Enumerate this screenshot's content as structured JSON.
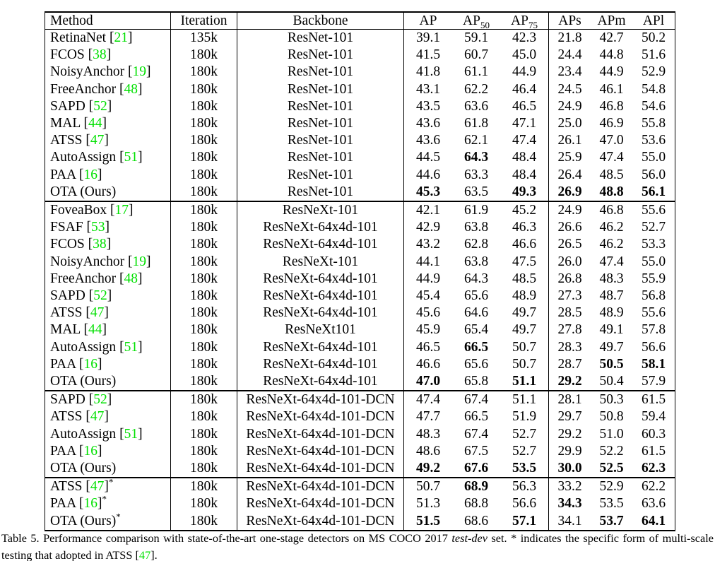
{
  "table": {
    "columns": [
      {
        "key": "method",
        "label": "Method"
      },
      {
        "key": "iteration",
        "label": "Iteration"
      },
      {
        "key": "backbone",
        "label": "Backbone"
      },
      {
        "key": "ap",
        "label": "AP"
      },
      {
        "key": "ap50",
        "label": "AP",
        "sub": "50"
      },
      {
        "key": "ap75",
        "label": "AP",
        "sub": "75"
      },
      {
        "key": "aps",
        "label": "APs"
      },
      {
        "key": "apm",
        "label": "APm"
      },
      {
        "key": "apl",
        "label": "APl"
      }
    ],
    "sections": [
      {
        "rows": [
          {
            "method": "RetinaNet",
            "cite": "21",
            "star": false,
            "iteration": "135k",
            "backbone": "ResNet-101",
            "values": [
              "39.1",
              "59.1",
              "42.3",
              "21.8",
              "42.7",
              "50.2"
            ],
            "bold": []
          },
          {
            "method": "FCOS",
            "cite": "38",
            "star": false,
            "iteration": "180k",
            "backbone": "ResNet-101",
            "values": [
              "41.5",
              "60.7",
              "45.0",
              "24.4",
              "44.8",
              "51.6"
            ],
            "bold": []
          },
          {
            "method": "NoisyAnchor",
            "cite": "19",
            "star": false,
            "iteration": "180k",
            "backbone": "ResNet-101",
            "values": [
              "41.8",
              "61.1",
              "44.9",
              "23.4",
              "44.9",
              "52.9"
            ],
            "bold": []
          },
          {
            "method": "FreeAnchor",
            "cite": "48",
            "star": false,
            "iteration": "180k",
            "backbone": "ResNet-101",
            "values": [
              "43.1",
              "62.2",
              "46.4",
              "24.5",
              "46.1",
              "54.8"
            ],
            "bold": []
          },
          {
            "method": "SAPD",
            "cite": "52",
            "star": false,
            "iteration": "180k",
            "backbone": "ResNet-101",
            "values": [
              "43.5",
              "63.6",
              "46.5",
              "24.9",
              "46.8",
              "54.6"
            ],
            "bold": []
          },
          {
            "method": "MAL",
            "cite": "44",
            "star": false,
            "iteration": "180k",
            "backbone": "ResNet-101",
            "values": [
              "43.6",
              "61.8",
              "47.1",
              "25.0",
              "46.9",
              "55.8"
            ],
            "bold": []
          },
          {
            "method": "ATSS",
            "cite": "47",
            "star": false,
            "iteration": "180k",
            "backbone": "ResNet-101",
            "values": [
              "43.6",
              "62.1",
              "47.4",
              "26.1",
              "47.0",
              "53.6"
            ],
            "bold": []
          },
          {
            "method": "AutoAssign",
            "cite": "51",
            "star": false,
            "iteration": "180k",
            "backbone": "ResNet-101",
            "values": [
              "44.5",
              "64.3",
              "48.4",
              "25.9",
              "47.4",
              "55.0"
            ],
            "bold": [
              1
            ]
          },
          {
            "method": "PAA",
            "cite": "16",
            "star": false,
            "iteration": "180k",
            "backbone": "ResNet-101",
            "values": [
              "44.6",
              "63.3",
              "48.4",
              "26.4",
              "48.5",
              "56.0"
            ],
            "bold": []
          },
          {
            "method": "OTA (Ours)",
            "cite": null,
            "star": false,
            "iteration": "180k",
            "backbone": "ResNet-101",
            "values": [
              "45.3",
              "63.5",
              "49.3",
              "26.9",
              "48.8",
              "56.1"
            ],
            "bold": [
              0,
              2,
              3,
              4,
              5
            ]
          }
        ]
      },
      {
        "rows": [
          {
            "method": "FoveaBox",
            "cite": "17",
            "star": false,
            "iteration": "180k",
            "backbone": "ResNeXt-101",
            "values": [
              "42.1",
              "61.9",
              "45.2",
              "24.9",
              "46.8",
              "55.6"
            ],
            "bold": []
          },
          {
            "method": "FSAF",
            "cite": "53",
            "star": false,
            "iteration": "180k",
            "backbone": "ResNeXt-64x4d-101",
            "values": [
              "42.9",
              "63.8",
              "46.3",
              "26.6",
              "46.2",
              "52.7"
            ],
            "bold": []
          },
          {
            "method": "FCOS",
            "cite": "38",
            "star": false,
            "iteration": "180k",
            "backbone": "ResNeXt-64x4d-101",
            "values": [
              "43.2",
              "62.8",
              "46.6",
              "26.5",
              "46.2",
              "53.3"
            ],
            "bold": []
          },
          {
            "method": "NoisyAnchor",
            "cite": "19",
            "star": false,
            "iteration": "180k",
            "backbone": "ResNeXt-101",
            "values": [
              "44.1",
              "63.8",
              "47.5",
              "26.0",
              "47.4",
              "55.0"
            ],
            "bold": []
          },
          {
            "method": "FreeAnchor",
            "cite": "48",
            "star": false,
            "iteration": "180k",
            "backbone": "ResNeXt-64x4d-101",
            "values": [
              "44.9",
              "64.3",
              "48.5",
              "26.8",
              "48.3",
              "55.9"
            ],
            "bold": []
          },
          {
            "method": "SAPD",
            "cite": "52",
            "star": false,
            "iteration": "180k",
            "backbone": "ResNeXt-64x4d-101",
            "values": [
              "45.4",
              "65.6",
              "48.9",
              "27.3",
              "48.7",
              "56.8"
            ],
            "bold": []
          },
          {
            "method": "ATSS",
            "cite": "47",
            "star": false,
            "iteration": "180k",
            "backbone": "ResNeXt-64x4d-101",
            "values": [
              "45.6",
              "64.6",
              "49.7",
              "28.5",
              "48.9",
              "55.6"
            ],
            "bold": []
          },
          {
            "method": "MAL",
            "cite": "44",
            "star": false,
            "iteration": "180k",
            "backbone": "ResNeXt101",
            "values": [
              "45.9",
              "65.4",
              "49.7",
              "27.8",
              "49.1",
              "57.8"
            ],
            "bold": []
          },
          {
            "method": "AutoAssign",
            "cite": "51",
            "star": false,
            "iteration": "180k",
            "backbone": "ResNeXt-64x4d-101",
            "values": [
              "46.5",
              "66.5",
              "50.7",
              "28.3",
              "49.7",
              "56.6"
            ],
            "bold": [
              1
            ]
          },
          {
            "method": "PAA",
            "cite": "16",
            "star": false,
            "iteration": "180k",
            "backbone": "ResNeXt-64x4d-101",
            "values": [
              "46.6",
              "65.6",
              "50.7",
              "28.7",
              "50.5",
              "58.1"
            ],
            "bold": [
              4,
              5
            ]
          },
          {
            "method": "OTA (Ours)",
            "cite": null,
            "star": false,
            "iteration": "180k",
            "backbone": "ResNeXt-64x4d-101",
            "values": [
              "47.0",
              "65.8",
              "51.1",
              "29.2",
              "50.4",
              "57.9"
            ],
            "bold": [
              0,
              2,
              3
            ]
          }
        ]
      },
      {
        "rows": [
          {
            "method": "SAPD",
            "cite": "52",
            "star": false,
            "iteration": "180k",
            "backbone": "ResNeXt-64x4d-101-DCN",
            "values": [
              "47.4",
              "67.4",
              "51.1",
              "28.1",
              "50.3",
              "61.5"
            ],
            "bold": []
          },
          {
            "method": "ATSS",
            "cite": "47",
            "star": false,
            "iteration": "180k",
            "backbone": "ResNeXt-64x4d-101-DCN",
            "values": [
              "47.7",
              "66.5",
              "51.9",
              "29.7",
              "50.8",
              "59.4"
            ],
            "bold": []
          },
          {
            "method": "AutoAssign",
            "cite": "51",
            "star": false,
            "iteration": "180k",
            "backbone": "ResNeXt-64x4d-101-DCN",
            "values": [
              "48.3",
              "67.4",
              "52.7",
              "29.2",
              "51.0",
              "60.3"
            ],
            "bold": []
          },
          {
            "method": "PAA",
            "cite": "16",
            "star": false,
            "iteration": "180k",
            "backbone": "ResNeXt-64x4d-101-DCN",
            "values": [
              "48.6",
              "67.5",
              "52.7",
              "29.9",
              "52.2",
              "61.5"
            ],
            "bold": []
          },
          {
            "method": "OTA (Ours)",
            "cite": null,
            "star": false,
            "iteration": "180k",
            "backbone": "ResNeXt-64x4d-101-DCN",
            "values": [
              "49.2",
              "67.6",
              "53.5",
              "30.0",
              "52.5",
              "62.3"
            ],
            "bold": [
              0,
              1,
              2,
              3,
              4,
              5
            ]
          }
        ]
      },
      {
        "rows": [
          {
            "method": "ATSS",
            "cite": "47",
            "star": true,
            "iteration": "180k",
            "backbone": "ResNeXt-64x4d-101-DCN",
            "values": [
              "50.7",
              "68.9",
              "56.3",
              "33.2",
              "52.9",
              "62.2"
            ],
            "bold": [
              1
            ]
          },
          {
            "method": "PAA",
            "cite": "16",
            "star": true,
            "iteration": "180k",
            "backbone": "ResNeXt-64x4d-101-DCN",
            "values": [
              "51.3",
              "68.8",
              "56.6",
              "34.3",
              "53.5",
              "63.6"
            ],
            "bold": [
              3
            ]
          },
          {
            "method": "OTA (Ours)",
            "cite": null,
            "star": true,
            "iteration": "180k",
            "backbone": "ResNeXt-64x4d-101-DCN",
            "values": [
              "51.5",
              "68.6",
              "57.1",
              "34.1",
              "53.7",
              "64.1"
            ],
            "bold": [
              0,
              2,
              4,
              5
            ]
          }
        ]
      }
    ]
  },
  "caption": {
    "part1": "Table 5. Performance comparison with state-of-the-art one-stage detectors on MS COCO 2017 ",
    "italic": "test-dev",
    "part2": " set. * indicates the specific form of multi-scale testing that adopted in ATSS [",
    "cite": "47",
    "part3": "]."
  },
  "colors": {
    "citation_green": "#00e000",
    "text": "#000000"
  }
}
